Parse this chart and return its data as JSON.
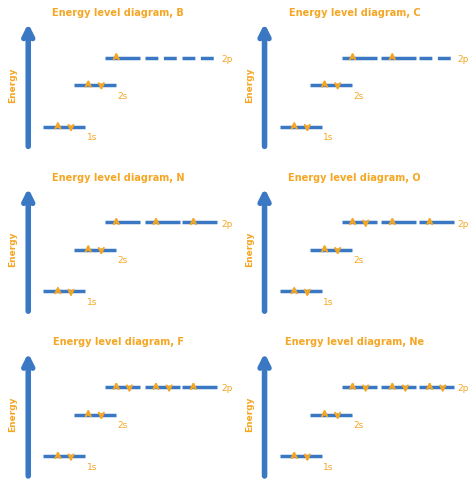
{
  "blue": "#3B78C3",
  "yellow": "#F5A623",
  "bg": "#FFFFFF",
  "title_color": "#F5A623",
  "axis_label_color": "#F5A623",
  "figsize": [
    4.74,
    4.93
  ],
  "dpi": 100,
  "diagrams": [
    {
      "title": "Energy level diagram, B",
      "electrons_1s": 2,
      "electrons_2s": 2,
      "electrons_2p": [
        1,
        0,
        0
      ]
    },
    {
      "title": "Energy level diagram, C",
      "electrons_1s": 2,
      "electrons_2s": 2,
      "electrons_2p": [
        1,
        1,
        0
      ]
    },
    {
      "title": "Energy level diagram, N",
      "electrons_1s": 2,
      "electrons_2s": 2,
      "electrons_2p": [
        1,
        1,
        1
      ]
    },
    {
      "title": "Energy level diagram, O",
      "electrons_1s": 2,
      "electrons_2s": 2,
      "electrons_2p": [
        2,
        1,
        1
      ]
    },
    {
      "title": "Energy level diagram, F",
      "electrons_1s": 2,
      "electrons_2s": 2,
      "electrons_2p": [
        2,
        2,
        1
      ]
    },
    {
      "title": "Energy level diagram, Ne",
      "electrons_1s": 2,
      "electrons_2s": 2,
      "electrons_2p": [
        2,
        2,
        2
      ]
    }
  ]
}
